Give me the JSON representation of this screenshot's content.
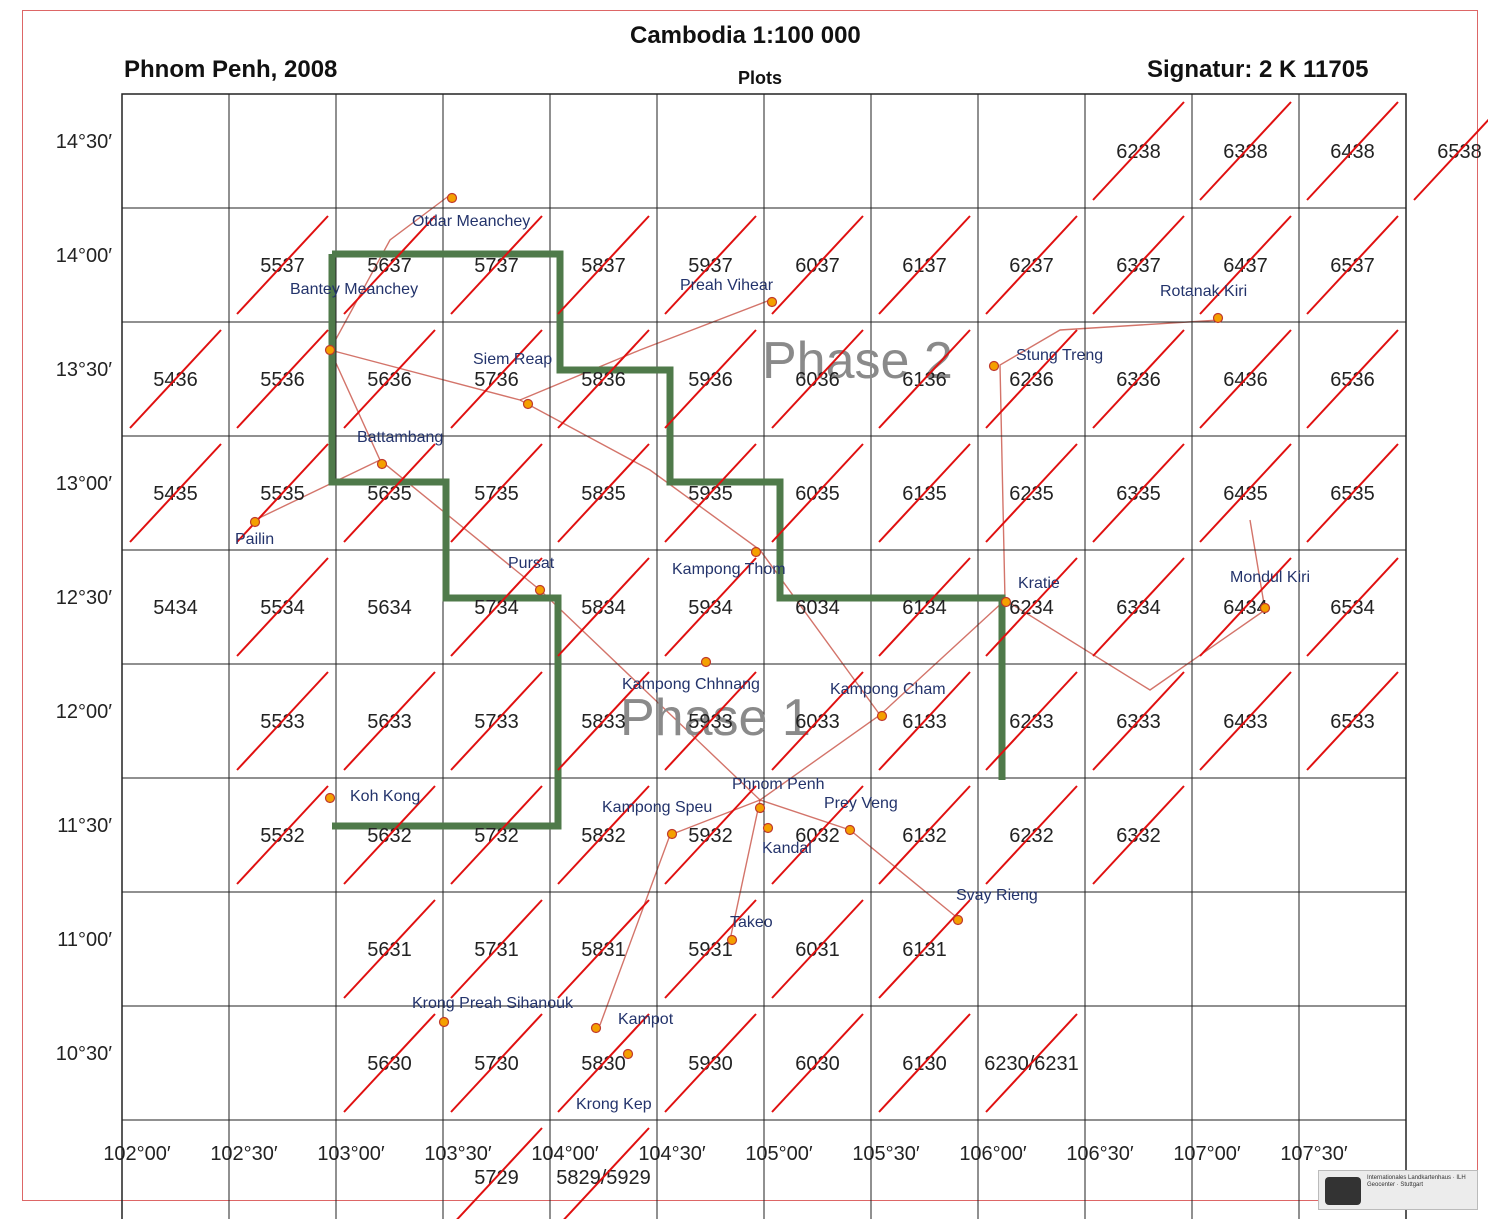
{
  "header": {
    "title": "Cambodia 1:100 000",
    "place_year": "Phnom Penh, 2008",
    "plots_label": "Plots",
    "signature": "Signatur: 2 K 11705"
  },
  "map": {
    "lon_labels": [
      "102°00′",
      "102°30′",
      "103°00′",
      "103°30′",
      "104°00′",
      "104°30′",
      "105°00′",
      "105°30′",
      "106°00′",
      "106°30′",
      "107°00′",
      "107°30′"
    ],
    "lat_labels": [
      "14°30′",
      "14°00′",
      "13°30′",
      "13°00′",
      "12°30′",
      "12°00′",
      "11°30′",
      "11°00′",
      "10°30′"
    ],
    "sheets": [
      {
        "id": "6238",
        "col": 9,
        "row": 0,
        "plotted": true
      },
      {
        "id": "6338",
        "col": 10,
        "row": 0,
        "plotted": true
      },
      {
        "id": "6438",
        "col": 11,
        "row": 0,
        "plotted": true
      },
      {
        "id": "6538",
        "col": 12,
        "row": 0,
        "plotted": true
      },
      {
        "id": "5537",
        "col": 1,
        "row": 1,
        "plotted": true
      },
      {
        "id": "5637",
        "col": 2,
        "row": 1,
        "plotted": true
      },
      {
        "id": "5737",
        "col": 3,
        "row": 1,
        "plotted": true
      },
      {
        "id": "5837",
        "col": 4,
        "row": 1,
        "plotted": true
      },
      {
        "id": "5937",
        "col": 5,
        "row": 1,
        "plotted": true
      },
      {
        "id": "6037",
        "col": 6,
        "row": 1,
        "plotted": true
      },
      {
        "id": "6137",
        "col": 7,
        "row": 1,
        "plotted": true
      },
      {
        "id": "6237",
        "col": 8,
        "row": 1,
        "plotted": true
      },
      {
        "id": "6337",
        "col": 9,
        "row": 1,
        "plotted": true
      },
      {
        "id": "6437",
        "col": 10,
        "row": 1,
        "plotted": true
      },
      {
        "id": "6537",
        "col": 11,
        "row": 1,
        "plotted": true
      },
      {
        "id": "5436",
        "col": 0,
        "row": 2,
        "plotted": true
      },
      {
        "id": "5536",
        "col": 1,
        "row": 2,
        "plotted": true
      },
      {
        "id": "5636",
        "col": 2,
        "row": 2,
        "plotted": true
      },
      {
        "id": "5736",
        "col": 3,
        "row": 2,
        "plotted": true
      },
      {
        "id": "5836",
        "col": 4,
        "row": 2,
        "plotted": true
      },
      {
        "id": "5936",
        "col": 5,
        "row": 2,
        "plotted": true
      },
      {
        "id": "6036",
        "col": 6,
        "row": 2,
        "plotted": true
      },
      {
        "id": "6136",
        "col": 7,
        "row": 2,
        "plotted": true
      },
      {
        "id": "6236",
        "col": 8,
        "row": 2,
        "plotted": true
      },
      {
        "id": "6336",
        "col": 9,
        "row": 2,
        "plotted": true
      },
      {
        "id": "6436",
        "col": 10,
        "row": 2,
        "plotted": true
      },
      {
        "id": "6536",
        "col": 11,
        "row": 2,
        "plotted": true
      },
      {
        "id": "5435",
        "col": 0,
        "row": 3,
        "plotted": true
      },
      {
        "id": "5535",
        "col": 1,
        "row": 3,
        "plotted": true
      },
      {
        "id": "5635",
        "col": 2,
        "row": 3,
        "plotted": true
      },
      {
        "id": "5735",
        "col": 3,
        "row": 3,
        "plotted": true
      },
      {
        "id": "5835",
        "col": 4,
        "row": 3,
        "plotted": true
      },
      {
        "id": "5935",
        "col": 5,
        "row": 3,
        "plotted": true
      },
      {
        "id": "6035",
        "col": 6,
        "row": 3,
        "plotted": true
      },
      {
        "id": "6135",
        "col": 7,
        "row": 3,
        "plotted": true
      },
      {
        "id": "6235",
        "col": 8,
        "row": 3,
        "plotted": true
      },
      {
        "id": "6335",
        "col": 9,
        "row": 3,
        "plotted": true
      },
      {
        "id": "6435",
        "col": 10,
        "row": 3,
        "plotted": true
      },
      {
        "id": "6535",
        "col": 11,
        "row": 3,
        "plotted": true
      },
      {
        "id": "5434",
        "col": 0,
        "row": 4,
        "plotted": false
      },
      {
        "id": "5534",
        "col": 1,
        "row": 4,
        "plotted": true
      },
      {
        "id": "5634",
        "col": 2,
        "row": 4,
        "plotted": false
      },
      {
        "id": "5734",
        "col": 3,
        "row": 4,
        "plotted": true
      },
      {
        "id": "5834",
        "col": 4,
        "row": 4,
        "plotted": true
      },
      {
        "id": "5934",
        "col": 5,
        "row": 4,
        "plotted": true
      },
      {
        "id": "6034",
        "col": 6,
        "row": 4,
        "plotted": false
      },
      {
        "id": "6134",
        "col": 7,
        "row": 4,
        "plotted": true
      },
      {
        "id": "6234",
        "col": 8,
        "row": 4,
        "plotted": true
      },
      {
        "id": "6334",
        "col": 9,
        "row": 4,
        "plotted": true
      },
      {
        "id": "6434",
        "col": 10,
        "row": 4,
        "plotted": true
      },
      {
        "id": "6534",
        "col": 11,
        "row": 4,
        "plotted": true
      },
      {
        "id": "5533",
        "col": 1,
        "row": 5,
        "plotted": true
      },
      {
        "id": "5633",
        "col": 2,
        "row": 5,
        "plotted": true
      },
      {
        "id": "5733",
        "col": 3,
        "row": 5,
        "plotted": true
      },
      {
        "id": "5833",
        "col": 4,
        "row": 5,
        "plotted": true
      },
      {
        "id": "5933",
        "col": 5,
        "row": 5,
        "plotted": true
      },
      {
        "id": "6033",
        "col": 6,
        "row": 5,
        "plotted": true
      },
      {
        "id": "6133",
        "col": 7,
        "row": 5,
        "plotted": true
      },
      {
        "id": "6233",
        "col": 8,
        "row": 5,
        "plotted": true
      },
      {
        "id": "6333",
        "col": 9,
        "row": 5,
        "plotted": true
      },
      {
        "id": "6433",
        "col": 10,
        "row": 5,
        "plotted": true
      },
      {
        "id": "6533",
        "col": 11,
        "row": 5,
        "plotted": true
      },
      {
        "id": "5532",
        "col": 1,
        "row": 6,
        "plotted": true
      },
      {
        "id": "5632",
        "col": 2,
        "row": 6,
        "plotted": true
      },
      {
        "id": "5732",
        "col": 3,
        "row": 6,
        "plotted": true
      },
      {
        "id": "5832",
        "col": 4,
        "row": 6,
        "plotted": true
      },
      {
        "id": "5932",
        "col": 5,
        "row": 6,
        "plotted": true
      },
      {
        "id": "6032",
        "col": 6,
        "row": 6,
        "plotted": true
      },
      {
        "id": "6132",
        "col": 7,
        "row": 6,
        "plotted": true
      },
      {
        "id": "6232",
        "col": 8,
        "row": 6,
        "plotted": true
      },
      {
        "id": "6332",
        "col": 9,
        "row": 6,
        "plotted": true
      },
      {
        "id": "5631",
        "col": 2,
        "row": 7,
        "plotted": true
      },
      {
        "id": "5731",
        "col": 3,
        "row": 7,
        "plotted": true
      },
      {
        "id": "5831",
        "col": 4,
        "row": 7,
        "plotted": true
      },
      {
        "id": "5931",
        "col": 5,
        "row": 7,
        "plotted": true
      },
      {
        "id": "6031",
        "col": 6,
        "row": 7,
        "plotted": true
      },
      {
        "id": "6131",
        "col": 7,
        "row": 7,
        "plotted": true
      },
      {
        "id": "6230/6231",
        "col": 8,
        "row": 8,
        "plotted": true
      },
      {
        "id": "5630",
        "col": 2,
        "row": 8,
        "plotted": true
      },
      {
        "id": "5730",
        "col": 3,
        "row": 8,
        "plotted": true
      },
      {
        "id": "5830",
        "col": 4,
        "row": 8,
        "plotted": true
      },
      {
        "id": "5930",
        "col": 5,
        "row": 8,
        "plotted": true
      },
      {
        "id": "6030",
        "col": 6,
        "row": 8,
        "plotted": true
      },
      {
        "id": "6130",
        "col": 7,
        "row": 8,
        "plotted": true
      },
      {
        "id": "5729",
        "col": 3,
        "row": 9,
        "plotted": true
      },
      {
        "id": "5829/5929",
        "col": 4,
        "row": 9,
        "plotted": true
      }
    ],
    "phases": [
      "Phase 1",
      "Phase 2"
    ],
    "towns": [
      "Otdar Meanchey",
      "Bantey Meanchey",
      "Siem Reap",
      "Battambang",
      "Pailin",
      "Pursat",
      "Preah Vihear",
      "Stung Treng",
      "Rotanak Kiri",
      "Kratie",
      "Mondul Kiri",
      "Kampong Thom",
      "Kampong Chhnang",
      "Kampong Cham",
      "Phnom Penh",
      "Kampong Speu",
      "Prey Veng",
      "Kandal",
      "Koh Kong",
      "Svay Rieng",
      "Takeo",
      "Krong Preah Sihanouk",
      "Kampot",
      "Krong Kep"
    ]
  },
  "colors": {
    "grid": "#222222",
    "plot_mark": "#e01010",
    "phase_border": "#4f7a4a",
    "road": "#c0392b",
    "town": "#f4a000"
  }
}
